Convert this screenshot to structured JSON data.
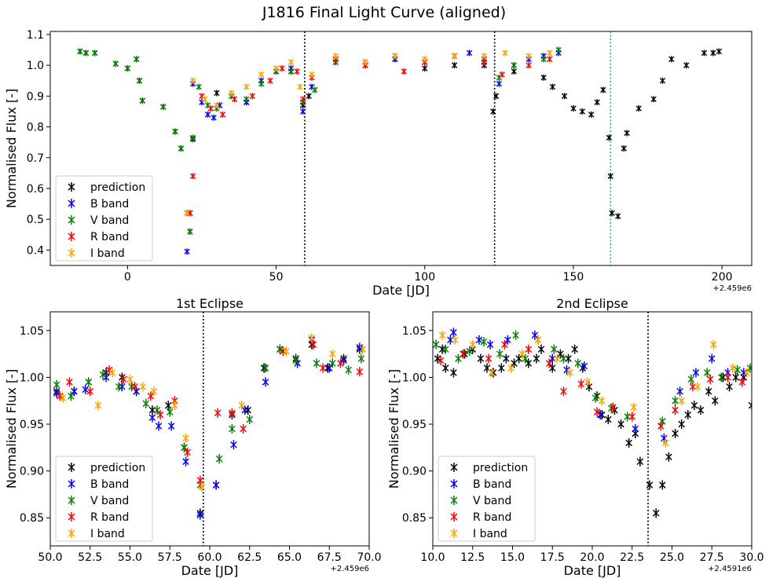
{
  "figure": {
    "suptitle": "J1816 Final Light Curve (aligned)"
  },
  "legend_labels": [
    "prediction",
    "B band",
    "V band",
    "R band",
    "I band"
  ],
  "colors": {
    "prediction": "#000000",
    "B": "#0000ff",
    "V": "#008000",
    "R": "#ff0000",
    "I": "#ffa500",
    "vline": "#000000",
    "vline_cyan": "#00bcd4"
  },
  "chart_data": [
    {
      "type": "scatter",
      "title": "",
      "xlabel": "Date [JD]",
      "ylabel": "Normalised Flux [-]",
      "offset_text": "+2.459e6",
      "xlim": [
        -26,
        210
      ],
      "ylim": [
        0.35,
        1.11
      ],
      "xticks": [
        0,
        50,
        100,
        150,
        200
      ],
      "yticks": [
        0.4,
        0.5,
        0.6,
        0.7,
        0.8,
        0.9,
        1.0,
        1.1
      ],
      "xtick_labels": [
        "0",
        "50",
        "100",
        "150",
        "200"
      ],
      "ytick_labels": [
        "0.4",
        "0.5",
        "0.6",
        "0.7",
        "0.8",
        "0.9",
        "1.0",
        "1.1"
      ],
      "legend_position": "lower-left",
      "vlines": [
        {
          "x": 59.6,
          "style": "dotted",
          "color": "black"
        },
        {
          "x": 123.5,
          "style": "dotted",
          "color": "black"
        },
        {
          "x": 162.5,
          "style": "dotted",
          "color": "cyan"
        }
      ],
      "series": [
        {
          "name": "prediction",
          "x": [
            -16,
            -14,
            -11,
            -4,
            0,
            3,
            4,
            5,
            12,
            16,
            18,
            20,
            21,
            22,
            30,
            40,
            50,
            55,
            59,
            61,
            70,
            80,
            90,
            100,
            110,
            120,
            123,
            124,
            130,
            140,
            143,
            147,
            150,
            153,
            156,
            158,
            160,
            162,
            162.5,
            163,
            165,
            167,
            168,
            172,
            177,
            180,
            183,
            188,
            194,
            197,
            199
          ],
          "y": [
            1.045,
            1.04,
            1.04,
            1.005,
            0.99,
            1.02,
            0.95,
            0.885,
            0.865,
            0.785,
            0.73,
            0.52,
            0.46,
            0.76,
            0.91,
            0.88,
            0.98,
            0.98,
            0.87,
            0.9,
            1.01,
            1.0,
            1.02,
            0.99,
            1.0,
            1.0,
            0.85,
            0.9,
            0.98,
            0.96,
            0.93,
            0.9,
            0.86,
            0.85,
            0.84,
            0.88,
            0.92,
            0.765,
            0.64,
            0.52,
            0.51,
            0.73,
            0.78,
            0.86,
            0.89,
            0.95,
            1.02,
            1.0,
            1.04,
            1.04,
            1.045
          ]
        },
        {
          "name": "B band",
          "x": [
            20,
            21,
            22,
            25,
            27,
            29,
            31,
            35,
            40,
            45,
            50,
            55,
            59,
            62,
            70,
            80,
            90,
            100,
            110,
            115,
            120,
            125,
            130,
            135,
            140,
            145
          ],
          "y": [
            0.395,
            0.52,
            0.94,
            0.88,
            0.84,
            0.83,
            0.87,
            0.9,
            0.88,
            0.95,
            0.98,
            0.99,
            0.85,
            0.93,
            1.02,
            1.01,
            1.02,
            1.01,
            1.03,
            1.04,
            1.02,
            0.94,
            1.0,
            1.02,
            1.03,
            1.04
          ]
        },
        {
          "name": "V band",
          "x": [
            -16,
            -14,
            -11,
            -4,
            0,
            3,
            4,
            5,
            12,
            16,
            18,
            20,
            21,
            22,
            24,
            27,
            30,
            35,
            40,
            45,
            50,
            55,
            59,
            63,
            70,
            80,
            90,
            100,
            110,
            120,
            125,
            130,
            140,
            145
          ],
          "y": [
            1.045,
            1.04,
            1.04,
            1.005,
            0.99,
            1.02,
            0.95,
            0.885,
            0.865,
            0.785,
            0.73,
            0.52,
            0.46,
            0.765,
            0.93,
            0.87,
            0.86,
            0.9,
            0.89,
            0.94,
            0.98,
            0.98,
            0.88,
            0.92,
            1.01,
            1.0,
            1.03,
            1.01,
            1.03,
            1.01,
            0.96,
            1.0,
            1.02,
            1.05
          ]
        },
        {
          "name": "R band",
          "x": [
            21,
            22,
            25,
            28,
            32,
            36,
            42,
            48,
            52,
            57,
            59,
            62,
            70,
            80,
            93,
            100,
            110,
            120,
            126,
            135,
            142
          ],
          "y": [
            0.52,
            0.64,
            0.9,
            0.86,
            0.84,
            0.89,
            0.9,
            0.95,
            0.99,
            0.98,
            0.89,
            0.96,
            1.02,
            1.0,
            0.98,
            1.01,
            1.03,
            1.01,
            0.97,
            1.0,
            1.02
          ]
        },
        {
          "name": "I band",
          "x": [
            20,
            22,
            26,
            30,
            35,
            40,
            45,
            50,
            55,
            58,
            62,
            70,
            80,
            90,
            100,
            110,
            120,
            127,
            135,
            142
          ],
          "y": [
            0.52,
            0.95,
            0.89,
            0.87,
            0.91,
            0.93,
            0.97,
            0.99,
            1.01,
            0.93,
            0.97,
            1.03,
            1.01,
            1.03,
            1.02,
            1.03,
            1.03,
            1.04,
            1.03,
            1.04
          ]
        }
      ]
    },
    {
      "type": "scatter",
      "title": "1st Eclipse",
      "xlabel": "Date [JD]",
      "ylabel": "Normalised Flux [-]",
      "offset_text": "+2.459e6",
      "xlim": [
        50,
        70
      ],
      "ylim": [
        0.82,
        1.07
      ],
      "xticks": [
        50,
        52.5,
        55,
        57.5,
        60,
        62.5,
        65,
        67.5,
        70
      ],
      "yticks": [
        0.85,
        0.9,
        0.95,
        1.0,
        1.05
      ],
      "xtick_labels": [
        "50.0",
        "52.5",
        "55.0",
        "57.5",
        "60.0",
        "62.5",
        "65.0",
        "67.5",
        "70.0"
      ],
      "ytick_labels": [
        "0.85",
        "0.90",
        "0.95",
        "1.00",
        "1.05"
      ],
      "legend_position": "lower-left",
      "vlines": [
        {
          "x": 59.6,
          "style": "dotted",
          "color": "black"
        }
      ],
      "series": [
        {
          "name": "prediction",
          "x": [
            50.4,
            51.5,
            52.4,
            53.5,
            54.5,
            55.4,
            56.4,
            57.4,
            58.4,
            59.4,
            60.4,
            61.4,
            62.4,
            63.4,
            64.4,
            65.4,
            66.4,
            67.4,
            68.4,
            69.4
          ],
          "y": [
            0.985,
            0.985,
            0.995,
            1.005,
            1.0,
            0.985,
            0.965,
            0.97,
            0.925,
            0.855,
            0.885,
            0.96,
            0.965,
            1.01,
            1.03,
            1.02,
            1.035,
            1.01,
            1.02,
            1.03
          ]
        },
        {
          "name": "B band",
          "x": [
            50.4,
            51.5,
            52.2,
            53.5,
            54.5,
            55.4,
            56.4,
            56.8,
            57.6,
            58.5,
            59.4,
            60.4,
            61.5,
            62.2,
            63.5,
            64.4,
            65.5,
            66.4,
            67.5,
            68.4,
            69.4
          ],
          "y": [
            0.983,
            0.985,
            0.987,
            1.0,
            0.99,
            0.985,
            0.957,
            0.948,
            0.948,
            0.91,
            0.853,
            0.885,
            0.928,
            0.965,
            0.995,
            1.03,
            1.015,
            1.04,
            1.01,
            1.018,
            1.032
          ]
        },
        {
          "name": "V band",
          "x": [
            50.4,
            51.3,
            52.4,
            53.3,
            54.3,
            55.1,
            56.0,
            56.7,
            57.5,
            58.4,
            59.4,
            60.6,
            61.4,
            62.5,
            63.5,
            64.4,
            65.4,
            66.7,
            67.7,
            68.7,
            69.5
          ],
          "y": [
            0.992,
            0.98,
            0.995,
            1.003,
            0.99,
            0.99,
            0.972,
            0.965,
            0.963,
            0.925,
            0.885,
            0.913,
            0.945,
            0.955,
            1.01,
            1.03,
            1.018,
            1.015,
            1.015,
            1.008,
            1.02
          ]
        },
        {
          "name": "R band",
          "x": [
            50.6,
            51.2,
            52.5,
            53.7,
            54.6,
            55.3,
            56.3,
            56.9,
            57.8,
            58.6,
            59.4,
            60.5,
            61.4,
            62.1,
            64.6,
            66.5,
            67.1,
            68.2,
            69.4
          ],
          "y": [
            0.98,
            0.995,
            0.985,
            1.008,
            0.998,
            0.99,
            0.98,
            0.96,
            0.975,
            0.92,
            0.89,
            0.962,
            0.962,
            0.945,
            1.028,
            1.035,
            1.01,
            1.015,
            1.006
          ]
        },
        {
          "name": "I band",
          "x": [
            50.8,
            53.0,
            53.9,
            55.0,
            55.8,
            56.5,
            57.8,
            58.5,
            59.5,
            62.0,
            64.8,
            66.4,
            67.7,
            69.6
          ],
          "y": [
            0.978,
            0.97,
            1.005,
            0.998,
            0.99,
            0.985,
            0.97,
            0.935,
            0.883,
            0.97,
            1.028,
            1.042,
            1.025,
            1.03
          ]
        }
      ]
    },
    {
      "type": "scatter",
      "title": "2nd Eclipse",
      "xlabel": "Date [JD]",
      "ylabel": "Normalised Flux [-]",
      "offset_text": "+2.4591e6",
      "xlim": [
        10,
        30
      ],
      "ylim": [
        0.82,
        1.07
      ],
      "xticks": [
        10,
        12.5,
        15,
        17.5,
        20,
        22.5,
        25,
        27.5,
        30
      ],
      "yticks": [
        0.85,
        0.9,
        0.95,
        1.0,
        1.05
      ],
      "xtick_labels": [
        "10.0",
        "12.5",
        "15.0",
        "17.5",
        "20.0",
        "22.5",
        "25.0",
        "27.5",
        "30.0"
      ],
      "ytick_labels": [
        "0.85",
        "0.90",
        "0.95",
        "1.00",
        "1.05"
      ],
      "legend_position": "lower-left",
      "vlines": [
        {
          "x": 23.5,
          "style": "dotted",
          "color": "black"
        }
      ],
      "series": [
        {
          "name": "prediction",
          "x": [
            10.3,
            10.6,
            10.8,
            11.3,
            12.0,
            12.5,
            13.0,
            13.4,
            13.8,
            14.3,
            14.6,
            15.1,
            15.4,
            16.0,
            16.5,
            16.8,
            17.5,
            18.0,
            18.5,
            18.9,
            19.4,
            19.8,
            20.3,
            20.6,
            21.0,
            21.4,
            21.8,
            22.3,
            22.7,
            23.0,
            23.6,
            24.0,
            24.4,
            24.8,
            25.2,
            25.6,
            26.0,
            26.4,
            26.8,
            27.3,
            27.7,
            28.2,
            28.6,
            29.0,
            29.5,
            30.0
          ],
          "y": [
            1.02,
            1.03,
            1.01,
            1.005,
            1.025,
            1.03,
            1.02,
            1.01,
            1.005,
            1.01,
            1.02,
            1.015,
            1.02,
            1.015,
            1.02,
            1.03,
            1.01,
            1.025,
            1.02,
            1.03,
            1.01,
            0.99,
            0.98,
            0.96,
            0.955,
            0.965,
            0.95,
            0.93,
            0.94,
            0.91,
            0.885,
            0.855,
            0.885,
            0.915,
            0.94,
            0.95,
            0.96,
            0.97,
            0.965,
            0.985,
            0.975,
            1.0,
            0.99,
            1.0,
            1.0,
            0.97
          ]
        },
        {
          "name": "B band",
          "x": [
            11.1,
            11.3,
            12.9,
            13.6,
            14.7,
            16.4,
            17.5,
            18.4,
            19.5,
            20.5,
            22.7,
            24.5,
            25.5,
            26.5,
            27.5,
            28.5,
            29.5
          ],
          "y": [
            1.04,
            1.048,
            1.04,
            1.035,
            1.04,
            1.045,
            1.02,
            1.008,
            1.012,
            0.96,
            0.945,
            0.935,
            0.985,
            1.005,
            1.02,
            1.005,
            1.005
          ]
        },
        {
          "name": "V band",
          "x": [
            10.2,
            10.8,
            11.6,
            12.3,
            13.2,
            14.2,
            15.2,
            15.8,
            16.6,
            17.6,
            18.2,
            19.1,
            20.2,
            21.2,
            22.2,
            24.4,
            25.2,
            26.2,
            27.2,
            28.1,
            29.1,
            29.9
          ],
          "y": [
            1.035,
            1.03,
            1.02,
            1.028,
            1.038,
            1.025,
            1.045,
            1.02,
            1.04,
            1.03,
            1.02,
            1.015,
            0.978,
            0.967,
            0.958,
            0.953,
            0.975,
            0.998,
            1.005,
            1.0,
            1.008,
            1.01
          ]
        },
        {
          "name": "R band",
          "x": [
            10.5,
            11.9,
            13.5,
            14.5,
            16.0,
            17.3,
            18.2,
            19.3,
            20.3,
            21.3,
            22.5,
            24.3,
            25.2,
            26.3,
            27.4,
            28.5,
            29.4
          ],
          "y": [
            1.018,
            1.025,
            1.02,
            1.035,
            1.03,
            1.015,
            0.985,
            0.993,
            0.963,
            0.968,
            0.958,
            0.948,
            0.965,
            0.99,
            0.998,
            1.0,
            0.995
          ]
        },
        {
          "name": "I band",
          "x": [
            10.6,
            11.4,
            12.5,
            13.7,
            14.9,
            15.6,
            16.6,
            17.8,
            18.6,
            19.7,
            20.6,
            22.6,
            24.6,
            25.6,
            26.6,
            27.6,
            28.8,
            29.7
          ],
          "y": [
            1.045,
            1.04,
            1.035,
            1.005,
            1.01,
            1.025,
            1.04,
            1.02,
            1.005,
            0.995,
            0.975,
            0.968,
            0.93,
            0.975,
            0.99,
            1.035,
            1.01,
            1.005
          ]
        }
      ]
    }
  ]
}
